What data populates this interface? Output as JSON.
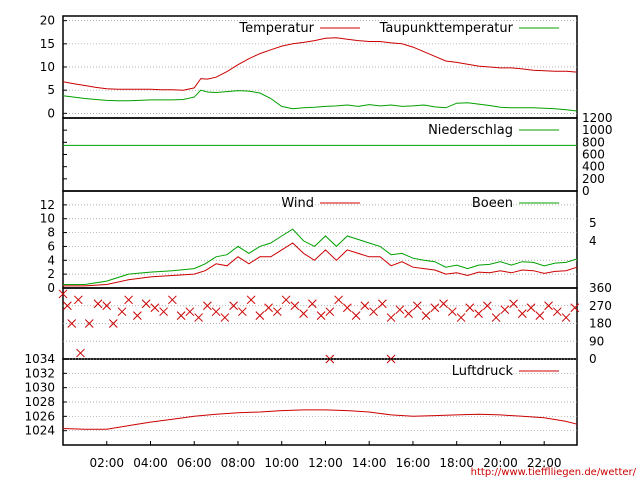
{
  "chart_data": [
    {
      "type": "line",
      "panel": "temperature",
      "x_unit": "hours",
      "xlim": [
        0,
        23.5
      ],
      "ylim": [
        -1,
        21
      ],
      "yticks": [
        "0",
        "5",
        "10",
        "15",
        "20"
      ],
      "grid": true,
      "legend_placement": "top-right",
      "series": [
        {
          "name": "Temperatur",
          "color": "#cc0000",
          "x": [
            0,
            0.5,
            1,
            1.5,
            2,
            2.5,
            3,
            3.5,
            4,
            4.5,
            5,
            5.5,
            6,
            6.3,
            6.6,
            7,
            7.5,
            8,
            8.5,
            9,
            9.5,
            10,
            10.5,
            11,
            11.5,
            12,
            12.5,
            13,
            13.5,
            14,
            14.5,
            15,
            15.5,
            16,
            16.5,
            17,
            17.5,
            18,
            18.5,
            19,
            19.5,
            20,
            20.5,
            21,
            21.5,
            22,
            22.5,
            23,
            23.5
          ],
          "y": [
            6.8,
            6.4,
            6.0,
            5.6,
            5.3,
            5.2,
            5.2,
            5.2,
            5.2,
            5.1,
            5.1,
            5.0,
            5.5,
            7.5,
            7.4,
            7.8,
            9.0,
            10.5,
            11.8,
            12.9,
            13.7,
            14.5,
            15.0,
            15.3,
            15.7,
            16.2,
            16.3,
            16.0,
            15.7,
            15.5,
            15.5,
            15.2,
            15.0,
            14.3,
            13.3,
            12.3,
            11.3,
            11.0,
            10.6,
            10.2,
            10.0,
            9.8,
            9.8,
            9.6,
            9.3,
            9.2,
            9.1,
            9.1,
            8.9
          ]
        },
        {
          "name": "Taupunkttemperatur",
          "color": "#00a000",
          "x": [
            0,
            0.5,
            1,
            1.5,
            2,
            2.5,
            3,
            3.5,
            4,
            4.5,
            5,
            5.5,
            6,
            6.3,
            6.6,
            7,
            7.5,
            8,
            8.5,
            9,
            9.5,
            10,
            10.5,
            11,
            11.5,
            12,
            12.5,
            13,
            13.5,
            14,
            14.5,
            15,
            15.5,
            16,
            16.5,
            17,
            17.5,
            18,
            18.5,
            19,
            19.5,
            20,
            20.5,
            21,
            21.5,
            22,
            22.5,
            23,
            23.5
          ],
          "y": [
            3.8,
            3.5,
            3.2,
            3.0,
            2.8,
            2.7,
            2.7,
            2.8,
            2.9,
            2.9,
            2.9,
            3.0,
            3.5,
            5.0,
            4.6,
            4.5,
            4.7,
            4.9,
            4.8,
            4.4,
            3.2,
            1.5,
            1.0,
            1.2,
            1.3,
            1.5,
            1.6,
            1.8,
            1.5,
            1.9,
            1.6,
            1.8,
            1.5,
            1.6,
            1.8,
            1.4,
            1.2,
            2.2,
            2.3,
            2.0,
            1.7,
            1.3,
            1.2,
            1.2,
            1.2,
            1.1,
            1.0,
            0.8,
            0.5
          ]
        }
      ]
    },
    {
      "type": "line",
      "panel": "precipitation",
      "xlim": [
        0,
        23.5
      ],
      "ylim": [
        0,
        1200
      ],
      "yticks": [
        "0",
        "200",
        "400",
        "600",
        "800",
        "1000",
        "1200"
      ],
      "grid": false,
      "legend_placement": "top-right",
      "series": [
        {
          "name": "Niederschlag",
          "color": "#00a000",
          "x": [
            0,
            23.5
          ],
          "y": [
            750,
            750
          ]
        }
      ]
    },
    {
      "type": "line",
      "panel": "wind",
      "xlim": [
        0,
        23.5
      ],
      "ylim": [
        0,
        14
      ],
      "yticks": [
        "0",
        "2",
        "4",
        "6",
        "8",
        "10",
        "12"
      ],
      "right_yticks": [
        "4",
        "5"
      ],
      "grid": true,
      "legend_placement": "top-right",
      "series": [
        {
          "name": "Wind",
          "color": "#cc0000",
          "x": [
            0,
            1,
            2,
            3,
            4,
            5,
            6,
            6.5,
            7,
            7.5,
            8,
            8.5,
            9,
            9.5,
            10,
            10.5,
            11,
            11.5,
            12,
            12.5,
            13,
            13.5,
            14,
            14.5,
            15,
            15.5,
            16,
            16.5,
            17,
            17.5,
            18,
            18.5,
            19,
            19.5,
            20,
            20.5,
            21,
            21.5,
            22,
            22.5,
            23,
            23.5
          ],
          "y": [
            0.3,
            0.3,
            0.5,
            1.2,
            1.6,
            1.8,
            2.0,
            2.5,
            3.5,
            3.2,
            4.5,
            3.5,
            4.5,
            4.5,
            5.5,
            6.5,
            5.0,
            4.0,
            5.5,
            4.0,
            5.5,
            5.0,
            4.5,
            4.5,
            3.2,
            3.8,
            3.0,
            2.8,
            2.6,
            2.0,
            2.2,
            1.8,
            2.3,
            2.2,
            2.5,
            2.2,
            2.6,
            2.5,
            2.1,
            2.4,
            2.5,
            3.0
          ]
        },
        {
          "name": "Boeen",
          "color": "#00a000",
          "x": [
            0,
            1,
            2,
            3,
            4,
            5,
            6,
            6.5,
            7,
            7.5,
            8,
            8.5,
            9,
            9.5,
            10,
            10.5,
            11,
            11.5,
            12,
            12.5,
            13,
            13.5,
            14,
            14.5,
            15,
            15.5,
            16,
            16.5,
            17,
            17.5,
            18,
            18.5,
            19,
            19.5,
            20,
            20.5,
            21,
            21.5,
            22,
            22.5,
            23,
            23.5
          ],
          "y": [
            0.5,
            0.5,
            1.0,
            2.0,
            2.3,
            2.5,
            2.8,
            3.5,
            4.5,
            4.8,
            6.0,
            5.0,
            6.0,
            6.5,
            7.5,
            8.5,
            6.8,
            6.0,
            7.5,
            6.0,
            7.5,
            7.0,
            6.5,
            6.0,
            4.8,
            5.0,
            4.3,
            4.0,
            3.8,
            3.0,
            3.3,
            2.8,
            3.3,
            3.4,
            3.8,
            3.3,
            3.8,
            3.7,
            3.2,
            3.6,
            3.7,
            4.2
          ]
        }
      ]
    },
    {
      "type": "scatter",
      "panel": "wind-direction",
      "xlim": [
        0,
        23.5
      ],
      "ylim": [
        0,
        360
      ],
      "right_yticks": [
        "0",
        "90",
        "180",
        "270",
        "360"
      ],
      "grid": true,
      "series": [
        {
          "name": "",
          "color": "#cc0000",
          "x": [
            0,
            0.2,
            0.4,
            0.7,
            1.2,
            1.6,
            2.0,
            2.3,
            2.7,
            3.0,
            3.4,
            3.8,
            4.2,
            4.6,
            5.0,
            5.4,
            5.8,
            6.2,
            6.6,
            7.0,
            7.4,
            7.8,
            8.2,
            8.6,
            9.0,
            9.4,
            9.8,
            10.2,
            10.6,
            11.0,
            11.4,
            11.8,
            12.2,
            12.6,
            13.0,
            13.4,
            13.8,
            14.2,
            14.6,
            15.0,
            15.4,
            15.8,
            16.2,
            16.6,
            17.0,
            17.4,
            17.8,
            18.2,
            18.6,
            19.0,
            19.4,
            19.8,
            20.2,
            20.6,
            21.0,
            21.4,
            21.8,
            22.2,
            22.6,
            23.0,
            23.4,
            0.8,
            12.2,
            15.0
          ],
          "y": [
            330,
            270,
            180,
            300,
            180,
            280,
            270,
            180,
            240,
            300,
            220,
            280,
            260,
            240,
            300,
            220,
            240,
            210,
            270,
            240,
            210,
            270,
            240,
            300,
            220,
            260,
            240,
            300,
            270,
            230,
            280,
            220,
            240,
            300,
            260,
            220,
            270,
            240,
            280,
            210,
            250,
            230,
            270,
            220,
            260,
            280,
            240,
            210,
            260,
            230,
            270,
            210,
            250,
            280,
            230,
            260,
            220,
            270,
            240,
            210,
            260,
            30,
            0,
            0
          ]
        }
      ]
    },
    {
      "type": "line",
      "panel": "pressure",
      "xlim": [
        0,
        23.5
      ],
      "ylim": [
        1022,
        1034
      ],
      "yticks": [
        "1024",
        "1026",
        "1028",
        "1030",
        "1032",
        "1034"
      ],
      "xticks": [
        "02:00",
        "04:00",
        "06:00",
        "08:00",
        "10:00",
        "12:00",
        "14:00",
        "16:00",
        "18:00",
        "20:00",
        "22:00"
      ],
      "grid": true,
      "legend_placement": "top-right",
      "series": [
        {
          "name": "Luftdruck",
          "color": "#cc0000",
          "x": [
            0,
            1,
            2,
            3,
            4,
            5,
            6,
            7,
            8,
            9,
            10,
            11,
            12,
            13,
            14,
            15,
            16,
            17,
            18,
            19,
            20,
            21,
            22,
            23,
            23.5
          ],
          "y": [
            1024.3,
            1024.2,
            1024.2,
            1024.7,
            1025.2,
            1025.6,
            1026.0,
            1026.3,
            1026.5,
            1026.6,
            1026.8,
            1026.9,
            1026.9,
            1026.8,
            1026.6,
            1026.2,
            1026.0,
            1026.1,
            1026.2,
            1026.3,
            1026.2,
            1026.0,
            1025.8,
            1025.3,
            1024.9
          ]
        }
      ]
    }
  ],
  "footer": {
    "link_text": "http://www.tiefflliegen.de/wetter/"
  }
}
